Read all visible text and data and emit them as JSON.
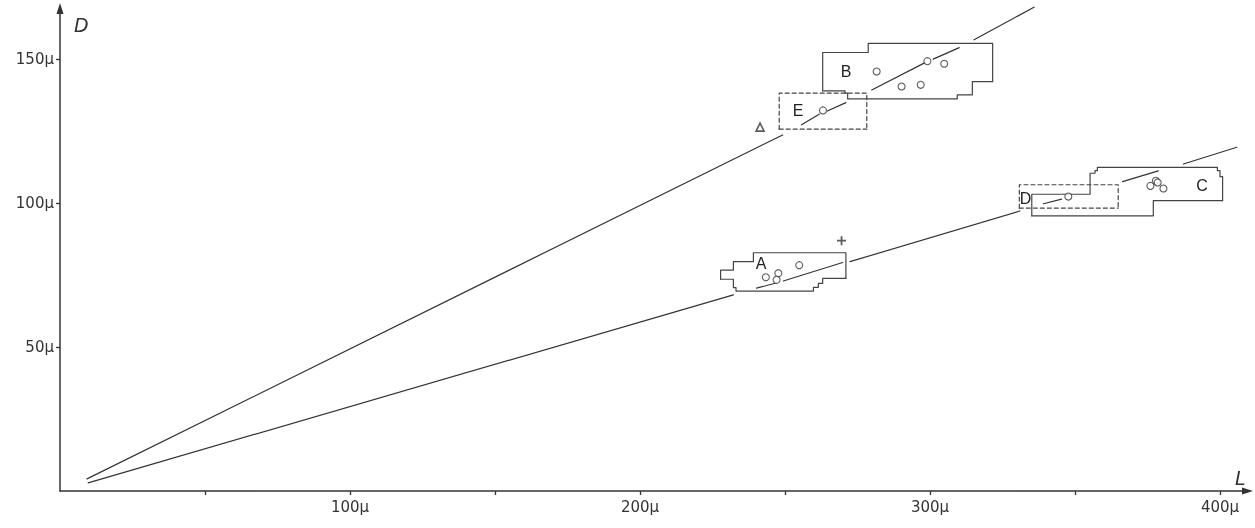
{
  "chart_data": {
    "type": "line",
    "xlabel": "L",
    "ylabel": "D",
    "xlim": [
      0,
      410
    ],
    "ylim": [
      0,
      168
    ],
    "xticks": [
      {
        "value": 50,
        "label": null
      },
      {
        "value": 100,
        "label": "100µ"
      },
      {
        "value": 150,
        "label": null
      },
      {
        "value": 200,
        "label": "200µ"
      },
      {
        "value": 250,
        "label": null
      },
      {
        "value": 300,
        "label": "300µ"
      },
      {
        "value": 350,
        "label": null
      },
      {
        "value": 400,
        "label": "400µ"
      }
    ],
    "yticks": [
      {
        "value": 50,
        "label": "50µ"
      },
      {
        "value": 100,
        "label": "100µ"
      },
      {
        "value": 150,
        "label": "150µ"
      }
    ],
    "series": [
      {
        "color": "#333333",
        "x": [
          9.3,
          249.2,
          252,
          255.7,
          261.8,
          263,
          264.6,
          271,
          275,
          279.9,
          298.3,
          299.5,
          301.1,
          310.1,
          312,
          315.2,
          336
        ],
        "values": [
          4.2,
          123.6,
          null,
          127.1,
          130.8,
          null,
          131.9,
          134.8,
          null,
          139.2,
          148.7,
          null,
          149.9,
          153.9,
          null,
          156.6,
          168
        ]
      },
      {
        "color": "#333333",
        "x": [
          9.7,
          232.2,
          236,
          240.2,
          246.6,
          248,
          249.4,
          269.9,
          271.2,
          272.4,
          331,
          335,
          339.1,
          345.4,
          355,
          366.4,
          378.7,
          383,
          387.4,
          405.8
        ],
        "values": [
          2.8,
          68.1,
          null,
          70.4,
          72.1,
          null,
          72.9,
          79.3,
          null,
          79.6,
          97.2,
          null,
          99.7,
          101.3,
          null,
          107.4,
          111.1,
          null,
          113.5,
          119.3
        ]
      },
      {
        "color": "#444444",
        "line_style": "solid",
        "x": [
          227.8,
          227.8,
          232.2,
          232.2,
          239.1,
          239.1,
          271.0,
          271.0
        ],
        "values": [
          73.5,
          76.7,
          76.7,
          79.6,
          79.6,
          82.7,
          82.7,
          73.8
        ]
      },
      {
        "color": "#444444",
        "line_style": "solid",
        "x": [
          227.8,
          232.2,
          232.2,
          233.1,
          233.1,
          259.8,
          259.8,
          261.5,
          261.5,
          263.0,
          263.0,
          271.0
        ],
        "values": [
          73.5,
          73.5,
          70.6,
          70.6,
          69.4,
          69.4,
          70.7,
          70.7,
          72.1,
          72.1,
          73.8,
          73.8
        ]
      },
      {
        "color": "#444444",
        "line_style": "solid",
        "x": [
          263.0,
          263.0,
          278.7,
          278.7,
          321.6,
          321.6
        ],
        "values": [
          138.9,
          152.2,
          152.2,
          155.4,
          155.4,
          142.1
        ]
      },
      {
        "color": "#444444",
        "line_style": "solid",
        "x": [
          263.0,
          270.7,
          270.7,
          271.6,
          271.6,
          309.4,
          309.4,
          314.6,
          314.6,
          321.6
        ],
        "values": [
          138.9,
          138.9,
          138.1,
          138.1,
          136.1,
          136.1,
          137.5,
          137.5,
          142.1,
          142.1
        ]
      },
      {
        "color": "#444444",
        "line_style": "solid",
        "x": [
          335.1,
          335.1,
          355.2,
          355.2,
          356.9,
          356.9,
          357.7,
          357.7,
          399.1,
          399.1,
          400.0,
          400.0,
          400.9,
          400.9
        ],
        "values": [
          95.5,
          103.0,
          103.0,
          110.3,
          110.3,
          111.2,
          111.2,
          112.3,
          112.3,
          111.2,
          111.2,
          109.1,
          109.1,
          100.8
        ]
      },
      {
        "color": "#444444",
        "line_style": "solid",
        "x": [
          335.1,
          377.0,
          377.0,
          400.9
        ],
        "values": [
          95.5,
          95.5,
          100.8,
          100.8
        ]
      },
      {
        "color": "#444444",
        "line_style": "dashed",
        "x": [
          330.8,
          330.8,
          364.9,
          364.9
        ],
        "values": [
          98.2,
          106.3,
          106.3,
          98.2
        ]
      },
      {
        "color": "#444444",
        "line_style": "dashed",
        "x": [
          330.8,
          364.9
        ],
        "values": [
          98.2,
          98.2
        ]
      },
      {
        "color": "#444444",
        "line_style": "dashed",
        "x": [
          248.0,
          248.0,
          278.2,
          278.2
        ],
        "values": [
          125.6,
          138.1,
          138.1,
          125.6
        ]
      },
      {
        "color": "#444444",
        "line_style": "dashed",
        "x": [
          248.0,
          278.2
        ],
        "values": [
          125.6,
          125.6
        ]
      },
      {
        "type": "scatter",
        "color": "#333333",
        "marker": "circle",
        "x": [
          263.1,
          281.6,
          290.2,
          296.8,
          299.1,
          304.9,
          243.4,
          247.7,
          247.1,
          254.9,
          347.7,
          376.0,
          377.9,
          378.5,
          380.5
        ],
        "values": [
          132.1,
          145.6,
          140.4,
          141.0,
          149.2,
          148.3,
          74.2,
          75.6,
          73.3,
          78.4,
          102.2,
          105.9,
          107.7,
          107.1,
          105.0
        ]
      },
      {
        "type": "scatter",
        "color": "#333333",
        "marker": "triangle",
        "x": [
          241.4
        ],
        "values": [
          126.3
        ]
      },
      {
        "type": "scatter",
        "color": "#333333",
        "marker": "cross",
        "x": [
          269.5
        ],
        "values": [
          86.9
        ]
      }
    ],
    "annotations": [
      "A",
      "B",
      "C",
      "D",
      "E"
    ]
  }
}
